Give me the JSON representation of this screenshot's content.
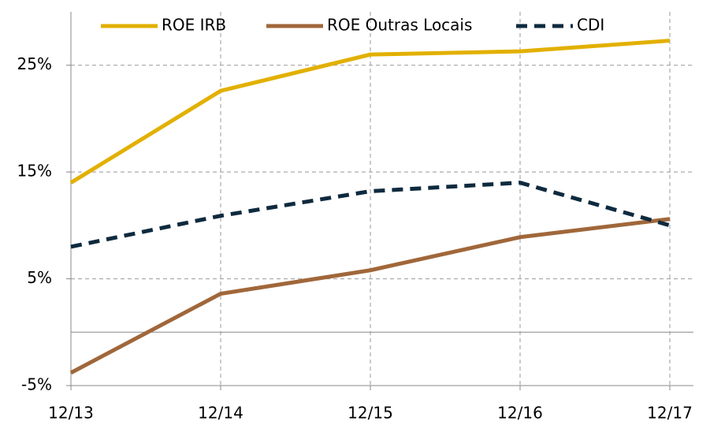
{
  "chart_data": {
    "type": "line",
    "categories": [
      "12/13",
      "12/14",
      "12/15",
      "12/16",
      "12/17"
    ],
    "series": [
      {
        "name": "ROE IRB",
        "color": "#e2b000",
        "style": "solid",
        "values": [
          14.0,
          22.6,
          26.0,
          26.3,
          27.3
        ]
      },
      {
        "name": "ROE Outras Locais",
        "color": "#a0673a",
        "style": "solid",
        "values": [
          -3.8,
          3.6,
          5.8,
          8.9,
          10.6
        ]
      },
      {
        "name": "CDI",
        "color": "#0e2a3e",
        "style": "dashed",
        "values": [
          8.0,
          10.9,
          13.2,
          14.0,
          10.0
        ]
      }
    ],
    "ylim": [
      -5,
      30
    ],
    "yticks": [
      {
        "value": -5,
        "label": "-5%"
      },
      {
        "value": 5,
        "label": "5%"
      },
      {
        "value": 15,
        "label": "15%"
      },
      {
        "value": 25,
        "label": "25%"
      }
    ],
    "grid": true,
    "legend": "top"
  }
}
